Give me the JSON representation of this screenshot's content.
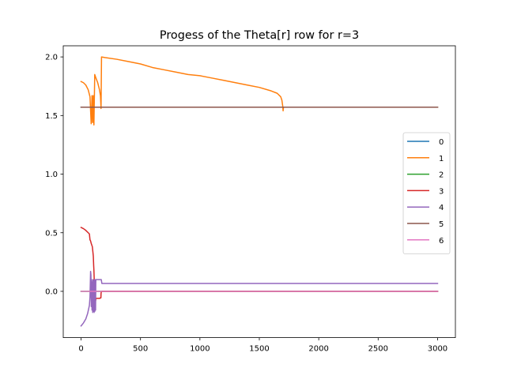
{
  "chart_data": {
    "type": "line",
    "title": "Progess of the Theta[r] row for r=3",
    "xlabel": "",
    "ylabel": "",
    "xlim": [
      -150,
      3150
    ],
    "ylim": [
      -0.395,
      2.095
    ],
    "xticks": [
      0,
      500,
      1000,
      1500,
      2000,
      2500,
      3000
    ],
    "yticks": [
      0.0,
      0.5,
      1.0,
      1.5,
      2.0
    ],
    "xtick_labels": [
      "0",
      "500",
      "1000",
      "1500",
      "2000",
      "2500",
      "3000"
    ],
    "ytick_labels": [
      "0.0",
      "0.5",
      "1.0",
      "1.5",
      "2.0"
    ],
    "grid": false,
    "legend_position": "center-right",
    "series": [
      {
        "name": "0",
        "color": "#1f77b4",
        "points": [
          [
            0,
            1.571
          ],
          [
            3000,
            1.571
          ]
        ]
      },
      {
        "name": "1",
        "color": "#ff7f0e",
        "points": [
          [
            0,
            1.79
          ],
          [
            20,
            1.78
          ],
          [
            40,
            1.76
          ],
          [
            60,
            1.72
          ],
          [
            75,
            1.66
          ],
          [
            85,
            1.43
          ],
          [
            92,
            1.67
          ],
          [
            97,
            1.44
          ],
          [
            103,
            1.67
          ],
          [
            108,
            1.42
          ],
          [
            115,
            1.85
          ],
          [
            125,
            1.82
          ],
          [
            140,
            1.78
          ],
          [
            155,
            1.72
          ],
          [
            163,
            1.67
          ],
          [
            168,
            1.56
          ],
          [
            172,
            2.0
          ],
          [
            200,
            1.995
          ],
          [
            300,
            1.98
          ],
          [
            400,
            1.96
          ],
          [
            500,
            1.94
          ],
          [
            600,
            1.91
          ],
          [
            700,
            1.89
          ],
          [
            800,
            1.87
          ],
          [
            900,
            1.85
          ],
          [
            1000,
            1.84
          ],
          [
            1100,
            1.82
          ],
          [
            1200,
            1.8
          ],
          [
            1300,
            1.78
          ],
          [
            1400,
            1.76
          ],
          [
            1500,
            1.74
          ],
          [
            1600,
            1.71
          ],
          [
            1650,
            1.69
          ],
          [
            1680,
            1.66
          ],
          [
            1690,
            1.63
          ],
          [
            1697,
            1.58
          ],
          [
            1700,
            1.54
          ],
          [
            1703,
            1.571
          ],
          [
            3000,
            1.571
          ]
        ]
      },
      {
        "name": "2",
        "color": "#2ca02c",
        "points": [
          [
            0,
            0.0
          ],
          [
            3000,
            0.0
          ]
        ]
      },
      {
        "name": "3",
        "color": "#d62728",
        "points": [
          [
            0,
            0.545
          ],
          [
            20,
            0.535
          ],
          [
            40,
            0.52
          ],
          [
            60,
            0.5
          ],
          [
            70,
            0.49
          ],
          [
            75,
            0.44
          ],
          [
            80,
            0.43
          ],
          [
            85,
            0.41
          ],
          [
            95,
            0.38
          ],
          [
            100,
            0.33
          ],
          [
            103,
            0.3
          ],
          [
            106,
            0.22
          ],
          [
            108,
            0.18
          ],
          [
            110,
            0.12
          ],
          [
            112,
            0.06
          ],
          [
            115,
            -0.05
          ],
          [
            118,
            -0.07
          ],
          [
            122,
            -0.08
          ],
          [
            126,
            -0.06
          ],
          [
            155,
            -0.06
          ],
          [
            167,
            -0.055
          ],
          [
            168,
            -0.02
          ],
          [
            170,
            -0.005
          ],
          [
            175,
            0.0
          ],
          [
            3000,
            0.0
          ]
        ]
      },
      {
        "name": "4",
        "color": "#9467bd",
        "points": [
          [
            0,
            -0.295
          ],
          [
            20,
            -0.27
          ],
          [
            40,
            -0.235
          ],
          [
            55,
            -0.19
          ],
          [
            70,
            -0.12
          ],
          [
            75,
            -0.05
          ],
          [
            80,
            0.17
          ],
          [
            83,
            0.14
          ],
          [
            86,
            -0.13
          ],
          [
            89,
            0.1
          ],
          [
            92,
            -0.16
          ],
          [
            95,
            0.08
          ],
          [
            98,
            -0.18
          ],
          [
            101,
            0.1
          ],
          [
            104,
            -0.17
          ],
          [
            107,
            0.09
          ],
          [
            110,
            -0.18
          ],
          [
            113,
            0.1
          ],
          [
            116,
            -0.17
          ],
          [
            119,
            0.1
          ],
          [
            122,
            -0.16
          ],
          [
            124,
            0.1
          ],
          [
            160,
            0.1
          ],
          [
            170,
            0.1
          ],
          [
            175,
            0.067
          ],
          [
            3000,
            0.067
          ]
        ]
      },
      {
        "name": "5",
        "color": "#8c564b",
        "points": [
          [
            0,
            1.571
          ],
          [
            3000,
            1.571
          ]
        ]
      },
      {
        "name": "6",
        "color": "#e377c2",
        "points": [
          [
            0,
            0.0
          ],
          [
            3000,
            0.0
          ]
        ]
      }
    ]
  }
}
